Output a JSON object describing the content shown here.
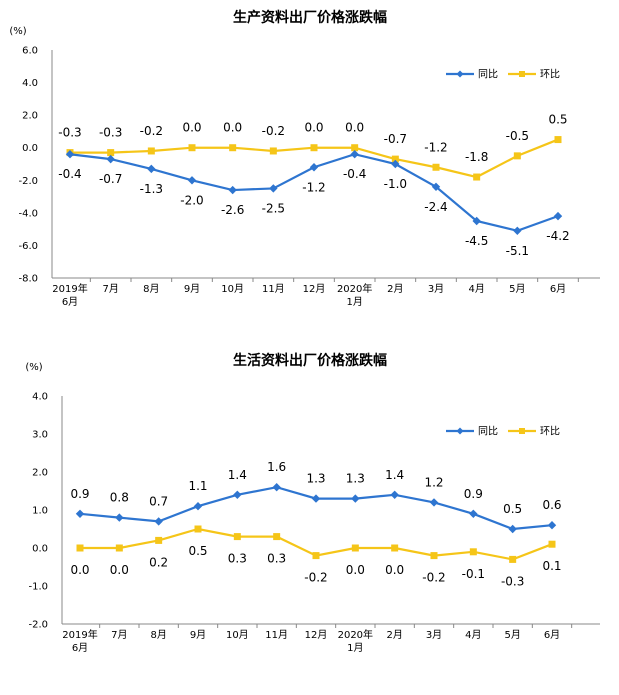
{
  "colors": {
    "yoy": "#2E75D0",
    "mom": "#F5C518"
  },
  "chart_data": [
    {
      "type": "line",
      "title": "生产资料出厂价格涨跌幅",
      "unit": "(%)",
      "categories": [
        "2019年\n6月",
        "7月",
        "8月",
        "9月",
        "10月",
        "11月",
        "12月",
        "2020年\n1月",
        "2月",
        "3月",
        "4月",
        "5月",
        "6月"
      ],
      "ylim": [
        -8.0,
        6.0
      ],
      "yticks": [
        "6.0",
        "4.0",
        "2.0",
        "0.0",
        "-2.0",
        "-4.0",
        "-6.0",
        "-8.0"
      ],
      "series": [
        {
          "name": "同比",
          "values": [
            -0.4,
            -0.7,
            -1.3,
            -2.0,
            -2.6,
            -2.5,
            -1.2,
            -0.4,
            -1.0,
            -2.4,
            -4.5,
            -5.1,
            -4.2
          ],
          "labels": [
            "-0.4",
            "-0.7",
            "-1.3",
            "-2.0",
            "-2.6",
            "-2.5",
            "-1.2",
            "-0.4",
            "-1.0",
            "-2.4",
            "-4.5",
            "-5.1",
            "-4.2"
          ]
        },
        {
          "name": "环比",
          "values": [
            -0.3,
            -0.3,
            -0.2,
            0.0,
            0.0,
            -0.2,
            0.0,
            0.0,
            -0.7,
            -1.2,
            -1.8,
            -0.5,
            0.5
          ],
          "labels": [
            "-0.3",
            "-0.3",
            "-0.2",
            "0.0",
            "0.0",
            "-0.2",
            "0.0",
            "0.0",
            "-0.7",
            "-1.2",
            "-1.8",
            "-0.5",
            "0.5"
          ]
        }
      ],
      "legend_position": "top-right",
      "grid": false
    },
    {
      "type": "line",
      "title": "生活资料出厂价格涨跌幅",
      "unit": "(%)",
      "categories": [
        "2019年\n6月",
        "7月",
        "8月",
        "9月",
        "10月",
        "11月",
        "12月",
        "2020年\n1月",
        "2月",
        "3月",
        "4月",
        "5月",
        "6月"
      ],
      "ylim": [
        -2.0,
        4.0
      ],
      "yticks": [
        "4.0",
        "3.0",
        "2.0",
        "1.0",
        "0.0",
        "-1.0",
        "-2.0"
      ],
      "series": [
        {
          "name": "同比",
          "values": [
            0.9,
            0.8,
            0.7,
            1.1,
            1.4,
            1.6,
            1.3,
            1.3,
            1.4,
            1.2,
            0.9,
            0.5,
            0.6
          ],
          "labels": [
            "0.9",
            "0.8",
            "0.7",
            "1.1",
            "1.4",
            "1.6",
            "1.3",
            "1.3",
            "1.4",
            "1.2",
            "0.9",
            "0.5",
            "0.6"
          ]
        },
        {
          "name": "环比",
          "values": [
            0.0,
            0.0,
            0.2,
            0.5,
            0.3,
            0.3,
            -0.2,
            0.0,
            0.0,
            -0.2,
            -0.1,
            -0.3,
            0.1
          ],
          "labels": [
            "0.0",
            "0.0",
            "0.2",
            "0.5",
            "0.3",
            "0.3",
            "-0.2",
            "0.0",
            "0.0",
            "-0.2",
            "-0.1",
            "-0.3",
            "0.1"
          ]
        }
      ],
      "legend_position": "top-right",
      "grid": false
    }
  ]
}
